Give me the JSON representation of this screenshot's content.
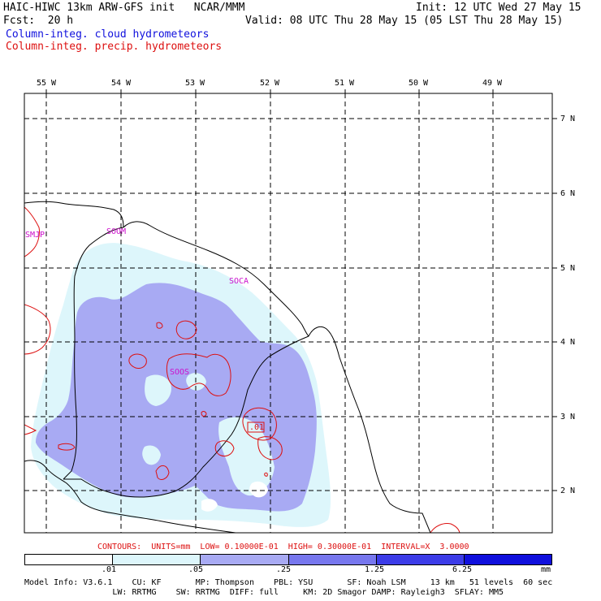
{
  "header": {
    "model_line": "HAIC-HIWC 13km ARW-GFS init   NCAR/MMM",
    "init_line": "Init: 12 UTC Wed 27 May 15",
    "fcst_label": "Fcst:  20 h",
    "valid_line": "Valid: 08 UTC Thu 28 May 15 (05 LST Thu 28 May 15)",
    "legend_cloud": "Column-integ. cloud hydrometeors",
    "legend_precip": "Column-integ. precip. hydrometeors"
  },
  "map": {
    "lon_labels": [
      "55 W",
      "54 W",
      "53 W",
      "52 W",
      "51 W",
      "50 W",
      "49 W"
    ],
    "lat_labels": [
      "7 N",
      "6 N",
      "5 N",
      "4 N",
      "3 N",
      "2 N"
    ],
    "stations": [
      "SMJP",
      "SOOM",
      "SOCA",
      "SOOS"
    ],
    "contour_label": ".01",
    "colors": {
      "cloud_low": "#ddf6fb",
      "cloud_mid": "#a8aaf3",
      "precip_contour": "#dd1010",
      "station_text": "#cc10cc"
    }
  },
  "footer": {
    "contours_line": "CONTOURS:  UNITS=mm  LOW= 0.10000E-01  HIGH= 0.30000E-01  INTERVAL=X  3.0000",
    "scale_ticks": [
      ".01",
      ".05",
      ".25",
      "1.25",
      "6.25"
    ],
    "scale_unit": "mm",
    "scale_colors": [
      "#ffffff",
      "#ddf6fb",
      "#a8aaf3",
      "#7777ee",
      "#3c3ce8",
      "#1010dd"
    ],
    "model_info": [
      "Model Info: V3.6.1    CU: KF       MP: Thompson    PBL: YSU       SF: Noah LSM     13 km   51 levels  60 sec",
      "                  LW: RRTMG    SW: RRTMG  DIFF: full     KM: 2D Smagor DAMP: Rayleigh3  SFLAY: MM5"
    ]
  }
}
